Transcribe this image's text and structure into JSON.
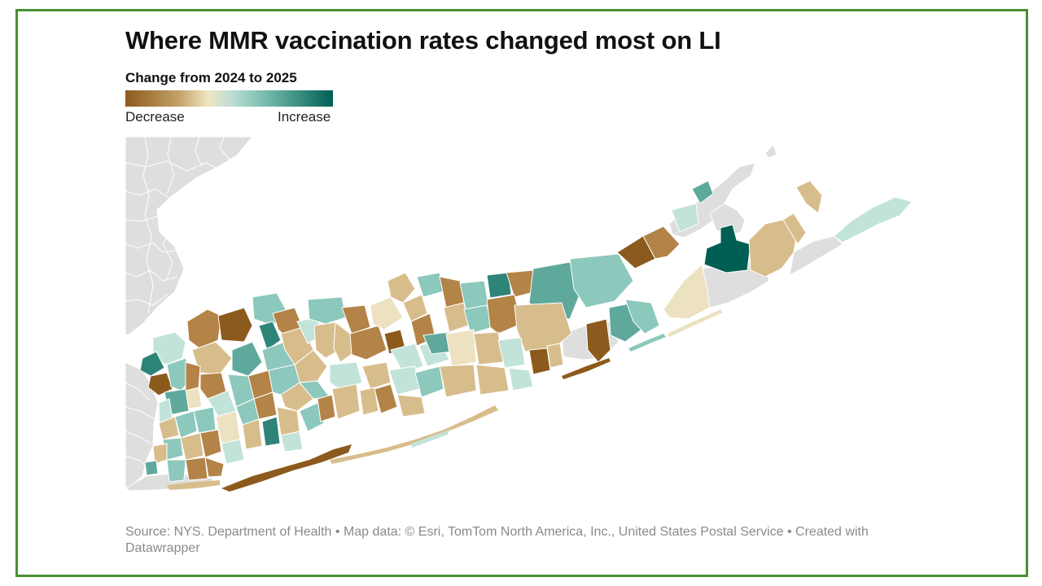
{
  "title": "Where MMR vaccination rates changed most on LI",
  "legend": {
    "title": "Change from 2024 to 2025",
    "low_label": "Decrease",
    "high_label": "Increase"
  },
  "colors": {
    "strong_decrease": "#8c5a1c",
    "decrease": "#b38347",
    "slight_decrease": "#d8bd8c",
    "neutral": "#ece2c2",
    "slight_increase": "#c2e3d9",
    "increase": "#8cc8bc",
    "strong_increase": "#005f54",
    "no_data": "#dedede",
    "frame": "#4a8f34"
  },
  "footer": {
    "source": "Source: NYS. Department of Health • Map data: © Esri, TomTom North America, Inc., United States Postal Service  • Created with Datawrapper"
  }
}
